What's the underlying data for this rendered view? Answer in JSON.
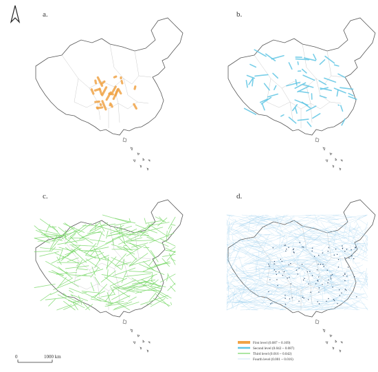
{
  "panels": [
    {
      "label": "a.",
      "level": 1
    },
    {
      "label": "b.",
      "level": 2
    },
    {
      "label": "c.",
      "level": 3
    },
    {
      "label": "d.",
      "level": 4
    }
  ],
  "legend": [
    {
      "label": "First level (0.087 ~ 0.169)",
      "color": "#f0a346"
    },
    {
      "label": "Second level (0.042 ~ 0.087)",
      "color": "#5fc6e4"
    },
    {
      "label": "Third level (0.016 ~ 0.042)",
      "color": "#7ad86a"
    },
    {
      "label": "Fourth level (0.001 ~ 0.016)",
      "color": "#9fd0ee"
    }
  ],
  "scale_bar": {
    "start": "0",
    "end": "1000 km"
  },
  "north_arrow": "north-arrow-icon"
}
